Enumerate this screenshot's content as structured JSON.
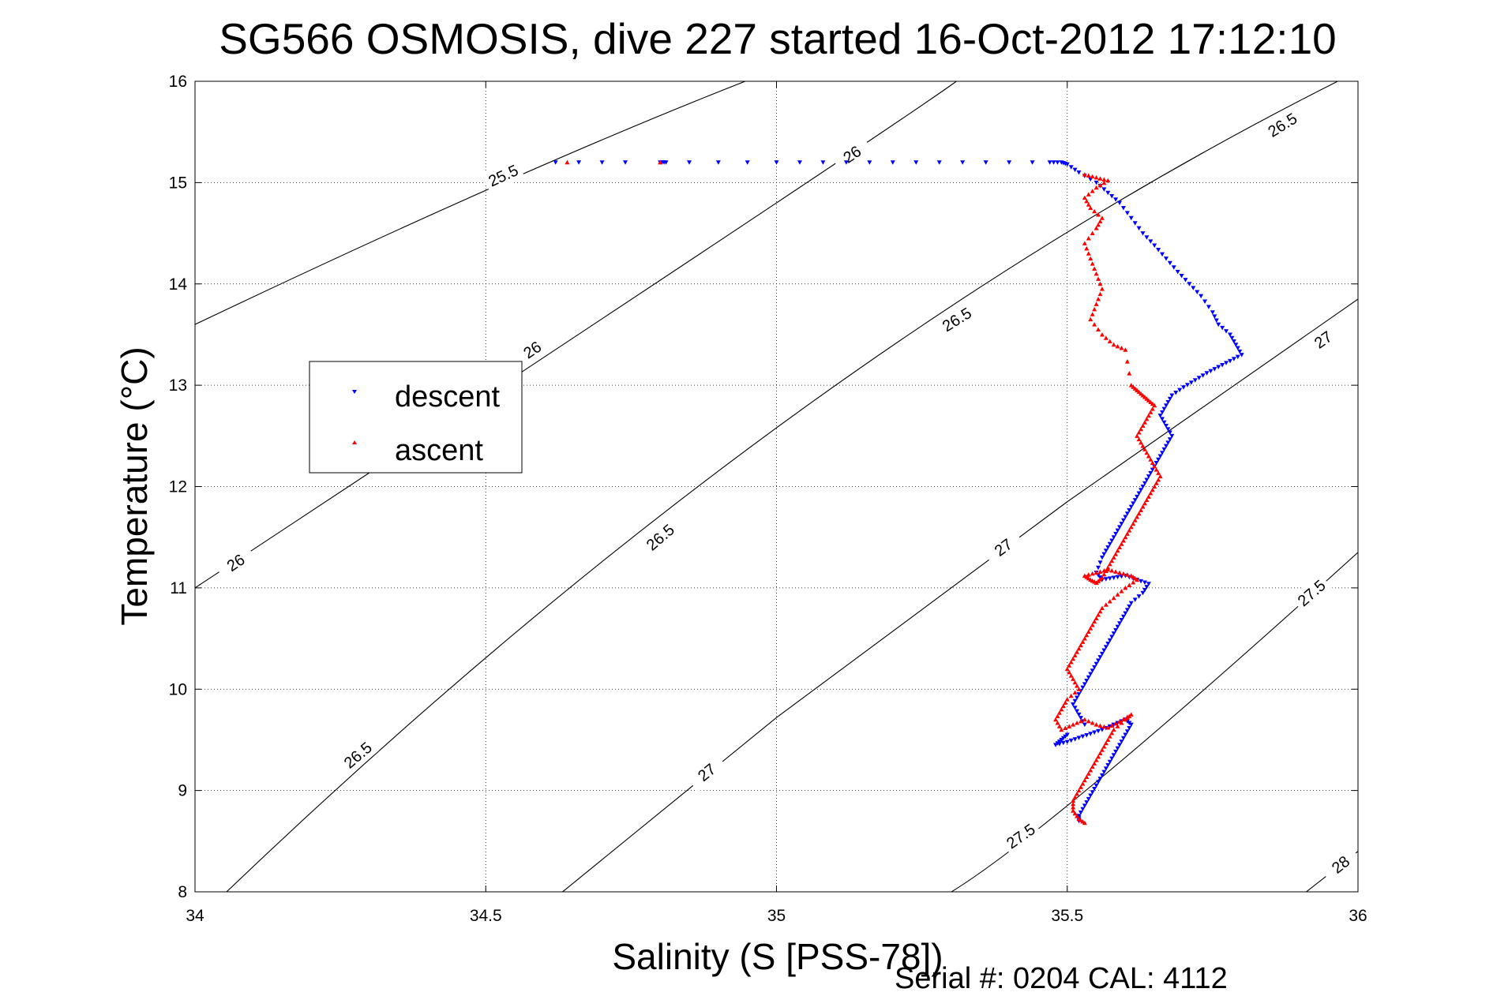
{
  "chart_data": {
    "type": "scatter",
    "title": "SG566 OSMOSIS, dive 227 started 16-Oct-2012 17:12:10",
    "xlabel": "Salinity (S [PSS-78])",
    "ylabel": "Temperature (°C)",
    "xlim": [
      34,
      36
    ],
    "ylim": [
      8,
      16
    ],
    "x_ticks": [
      "34",
      "34.5",
      "35",
      "35.5",
      "36"
    ],
    "y_ticks": [
      "8",
      "9",
      "10",
      "11",
      "12",
      "13",
      "14",
      "15",
      "16"
    ],
    "grid": true,
    "legend_position": "left-middle",
    "footer": "Serial #: 0204  CAL: 4112",
    "contours": [
      {
        "label": "25.5",
        "points": [
          [
            34.0,
            13.6
          ],
          [
            34.55,
            15.05
          ],
          [
            35.0,
            16.12
          ]
        ],
        "labels_at": [
          [
            34.53,
            15.07
          ]
        ]
      },
      {
        "label": "26",
        "points": [
          [
            34.0,
            11.0
          ],
          [
            35.0,
            14.8
          ],
          [
            35.32,
            16.05
          ]
        ],
        "labels_at": [
          [
            34.07,
            11.25
          ],
          [
            34.58,
            13.35
          ],
          [
            35.13,
            15.28
          ]
        ]
      },
      {
        "label": "26.5",
        "points": [
          [
            34.0,
            7.7
          ],
          [
            35.0,
            12.58
          ],
          [
            36.0,
            16.1
          ]
        ],
        "labels_at": [
          [
            34.28,
            9.35
          ],
          [
            34.8,
            11.5
          ],
          [
            35.31,
            13.65
          ],
          [
            35.87,
            15.57
          ]
        ]
      },
      {
        "label": "27",
        "points": [
          [
            34.6,
            7.85
          ],
          [
            35.0,
            9.72
          ],
          [
            35.5,
            11.85
          ],
          [
            36.0,
            13.85
          ]
        ],
        "labels_at": [
          [
            34.88,
            9.18
          ],
          [
            35.39,
            11.4
          ],
          [
            35.94,
            13.45
          ]
        ]
      },
      {
        "label": "27.5",
        "points": [
          [
            35.25,
            7.85
          ],
          [
            35.5,
            8.85
          ],
          [
            36.0,
            11.35
          ]
        ],
        "labels_at": [
          [
            35.42,
            8.55
          ],
          [
            35.92,
            10.95
          ]
        ]
      },
      {
        "label": "28",
        "points": [
          [
            35.9,
            7.95
          ],
          [
            36.0,
            8.4
          ]
        ],
        "labels_at": [
          [
            35.97,
            8.27
          ]
        ]
      }
    ],
    "series": [
      {
        "name": "descent",
        "color": "#0000ff",
        "marker": "triangle-down",
        "x": [
          34.62,
          34.66,
          34.7,
          34.74,
          34.8,
          34.81,
          34.85,
          34.9,
          34.95,
          35.0,
          35.04,
          35.08,
          35.12,
          35.16,
          35.2,
          35.24,
          35.28,
          35.32,
          35.36,
          35.4,
          35.44,
          35.47,
          35.49,
          35.5,
          35.52,
          35.55,
          35.57,
          35.59,
          35.61,
          35.63,
          35.65,
          35.67,
          35.69,
          35.71,
          35.73,
          35.75,
          35.76,
          35.78,
          35.79,
          35.8,
          35.78,
          35.76,
          35.74,
          35.72,
          35.7,
          35.68,
          35.67,
          35.66,
          35.67,
          35.68,
          35.67,
          35.66,
          35.65,
          35.64,
          35.63,
          35.62,
          35.61,
          35.6,
          35.59,
          35.58,
          35.57,
          35.56,
          35.55,
          35.56,
          35.58,
          35.6,
          35.62,
          35.64,
          35.63,
          35.61,
          35.6,
          35.59,
          35.58,
          35.57,
          35.56,
          35.55,
          35.54,
          35.53,
          35.52,
          35.51,
          35.52,
          35.53,
          35.5,
          35.49,
          35.48,
          35.5,
          35.52,
          35.54,
          35.56,
          35.58,
          35.6,
          35.61,
          35.6,
          35.59,
          35.58,
          35.57,
          35.56,
          35.55,
          35.54,
          35.53,
          35.52,
          35.52
        ],
        "y": [
          15.2,
          15.2,
          15.2,
          15.2,
          15.2,
          15.2,
          15.2,
          15.2,
          15.2,
          15.2,
          15.2,
          15.2,
          15.2,
          15.2,
          15.2,
          15.2,
          15.2,
          15.2,
          15.2,
          15.2,
          15.2,
          15.2,
          15.2,
          15.18,
          15.1,
          15.0,
          14.9,
          14.8,
          14.65,
          14.5,
          14.38,
          14.25,
          14.12,
          14.0,
          13.88,
          13.72,
          13.6,
          13.5,
          13.4,
          13.3,
          13.24,
          13.18,
          13.12,
          13.05,
          12.98,
          12.9,
          12.8,
          12.7,
          12.6,
          12.5,
          12.4,
          12.3,
          12.2,
          12.1,
          12.0,
          11.9,
          11.8,
          11.7,
          11.6,
          11.5,
          11.4,
          11.3,
          11.15,
          11.08,
          11.1,
          11.12,
          11.08,
          11.04,
          10.95,
          10.85,
          10.75,
          10.65,
          10.55,
          10.45,
          10.35,
          10.25,
          10.15,
          10.05,
          9.95,
          9.85,
          9.75,
          9.65,
          9.55,
          9.5,
          9.45,
          9.48,
          9.52,
          9.56,
          9.6,
          9.65,
          9.7,
          9.65,
          9.55,
          9.45,
          9.35,
          9.25,
          9.15,
          9.05,
          8.95,
          8.85,
          8.75,
          8.7
        ]
      },
      {
        "name": "ascent",
        "color": "#ff0000",
        "marker": "triangle-up",
        "x": [
          34.64,
          34.8,
          35.53,
          35.55,
          35.57,
          35.55,
          35.53,
          35.54,
          35.56,
          35.55,
          35.53,
          35.54,
          35.55,
          35.56,
          35.55,
          35.54,
          35.56,
          35.58,
          35.6,
          35.61,
          35.62,
          35.63,
          35.64,
          35.65,
          35.64,
          35.63,
          35.62,
          35.63,
          35.64,
          35.65,
          35.66,
          35.65,
          35.64,
          35.63,
          35.62,
          35.61,
          35.6,
          35.59,
          35.58,
          35.57,
          35.56,
          35.55,
          35.54,
          35.53,
          35.55,
          35.57,
          35.59,
          35.61,
          35.62,
          35.6,
          35.58,
          35.56,
          35.55,
          35.54,
          35.53,
          35.52,
          35.51,
          35.5,
          35.51,
          35.52,
          35.5,
          35.49,
          35.48,
          35.49,
          35.51,
          35.53,
          35.55,
          35.57,
          35.59,
          35.61,
          35.6,
          35.58,
          35.57,
          35.56,
          35.55,
          35.54,
          35.53,
          35.52,
          35.51,
          35.51,
          35.52,
          35.53
        ],
        "y": [
          15.2,
          15.2,
          15.08,
          15.05,
          15.02,
          14.95,
          14.85,
          14.75,
          14.65,
          14.55,
          14.4,
          14.25,
          14.1,
          13.95,
          13.8,
          13.65,
          13.5,
          13.4,
          13.35,
          13.0,
          12.95,
          12.9,
          12.85,
          12.8,
          12.7,
          12.6,
          12.5,
          12.4,
          12.3,
          12.2,
          12.1,
          12.0,
          11.9,
          11.8,
          11.7,
          11.6,
          11.5,
          11.4,
          11.3,
          11.2,
          11.1,
          11.05,
          11.08,
          11.12,
          11.15,
          11.18,
          11.15,
          11.12,
          11.08,
          11.0,
          10.9,
          10.8,
          10.7,
          10.6,
          10.5,
          10.4,
          10.3,
          10.2,
          10.1,
          10.0,
          9.9,
          9.8,
          9.7,
          9.6,
          9.65,
          9.7,
          9.65,
          9.62,
          9.68,
          9.75,
          9.7,
          9.6,
          9.5,
          9.4,
          9.3,
          9.2,
          9.1,
          9.0,
          8.9,
          8.8,
          8.72,
          8.68
        ]
      }
    ]
  }
}
